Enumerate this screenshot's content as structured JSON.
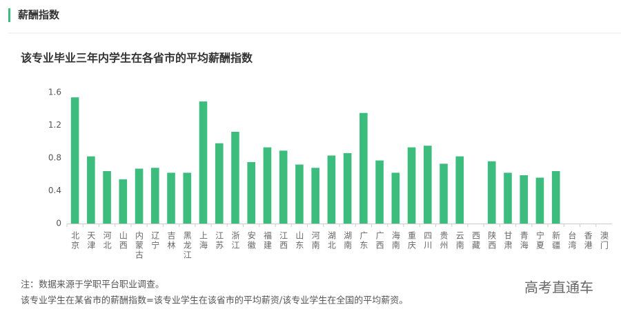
{
  "header": {
    "title": "薪酬指数"
  },
  "chart_data": {
    "type": "bar",
    "title": "该专业毕业三年内学生在各省市的平均薪酬指数",
    "categories": [
      "北京",
      "天津",
      "河北",
      "山西",
      "内蒙古",
      "辽宁",
      "吉林",
      "黑龙江",
      "上海",
      "江苏",
      "浙江",
      "安徽",
      "福建",
      "江西",
      "山东",
      "河南",
      "湖北",
      "湖南",
      "广东",
      "广西",
      "海南",
      "重庆",
      "四川",
      "贵州",
      "云南",
      "西藏",
      "陕西",
      "甘肃",
      "青海",
      "宁夏",
      "新疆",
      "台湾",
      "香港",
      "澳门"
    ],
    "values": [
      1.54,
      0.82,
      0.64,
      0.54,
      0.67,
      0.68,
      0.62,
      0.62,
      1.49,
      0.98,
      1.12,
      0.75,
      0.93,
      0.89,
      0.72,
      0.68,
      0.83,
      0.86,
      1.35,
      0.77,
      0.62,
      0.93,
      0.95,
      0.73,
      0.82,
      null,
      0.76,
      0.62,
      0.59,
      0.56,
      0.64,
      null,
      null,
      null
    ],
    "color": "#3dbd7d",
    "ylim": [
      0,
      1.6
    ],
    "yticks": [
      0,
      0.4,
      0.8,
      1.2,
      1.6
    ],
    "grid": false
  },
  "notes": [
    "注：数据来源于学职平台职业调查。",
    "该专业学生在某省市的薪酬指数=该专业学生在该省市的平均薪资/该专业学生在全国的平均薪资。"
  ],
  "brand": "高考直通车"
}
